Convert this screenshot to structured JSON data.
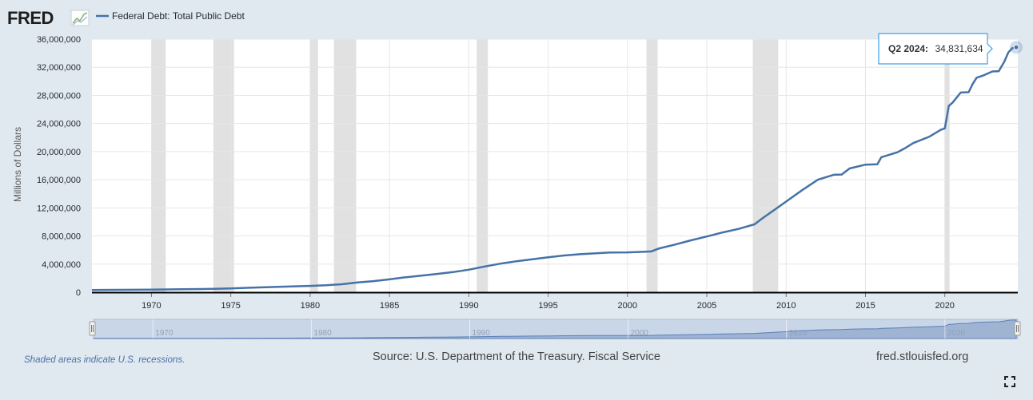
{
  "brand": {
    "logo_text": "FRED",
    "logo_icon": "fred-graph-icon"
  },
  "legend": {
    "series_label": "Federal Debt: Total Public Debt",
    "color": "#4572a7"
  },
  "tooltip": {
    "label": "Q2 2024:",
    "value": "34,831,634"
  },
  "navigator": {
    "ticks": [
      "1970",
      "1980",
      "1990",
      "2000",
      "2010",
      "2020"
    ]
  },
  "footer": {
    "recession_note": "Shaded areas indicate U.S. recessions.",
    "source": "Source: U.S. Department of the Treasury. Fiscal Service",
    "site": "fred.stlouisfed.org",
    "fullscreen_icon": "fullscreen-icon"
  },
  "colors": {
    "background": "#e1e9f0",
    "plot": "#ffffff",
    "line": "#4572a7",
    "recession": "#e1e1e1",
    "navigator_fill": "#b8c8e0"
  },
  "chart_data": {
    "type": "line",
    "title": "",
    "xlabel": "",
    "ylabel": "Millions of Dollars",
    "x_range": [
      1966.25,
      2024.6
    ],
    "ylim": [
      0,
      36000000
    ],
    "y_ticks": [
      0,
      4000000,
      8000000,
      12000000,
      16000000,
      20000000,
      24000000,
      28000000,
      32000000,
      36000000
    ],
    "y_tick_labels": [
      "0",
      "4,000,000",
      "8,000,000",
      "12,000,000",
      "16,000,000",
      "20,000,000",
      "24,000,000",
      "28,000,000",
      "32,000,000",
      "36,000,000"
    ],
    "x_ticks": [
      1970,
      1975,
      1980,
      1985,
      1990,
      1995,
      2000,
      2005,
      2010,
      2015,
      2020
    ],
    "x_tick_labels": [
      "1970",
      "1975",
      "1980",
      "1985",
      "1990",
      "1995",
      "2000",
      "2005",
      "2010",
      "2015",
      "2020"
    ],
    "grid": true,
    "legend_position": "top-left",
    "recessions": [
      [
        1970.0,
        1970.9
      ],
      [
        1973.9,
        1975.2
      ],
      [
        1980.0,
        1980.5
      ],
      [
        1981.5,
        1982.9
      ],
      [
        1990.5,
        1991.2
      ],
      [
        2001.2,
        2001.9
      ],
      [
        2007.9,
        2009.5
      ],
      [
        2020.0,
        2020.3
      ]
    ],
    "series": [
      {
        "name": "Federal Debt: Total Public Debt",
        "x": [
          1966.25,
          1968,
          1970,
          1972,
          1974,
          1975,
          1976,
          1978,
          1980,
          1981,
          1982,
          1983,
          1984,
          1985,
          1986,
          1987,
          1988,
          1989,
          1990,
          1991,
          1992,
          1993,
          1994,
          1995,
          1996,
          1997,
          1998,
          1999,
          2000,
          2000.5,
          2001,
          2001.5,
          2002,
          2003,
          2004,
          2005,
          2006,
          2007,
          2008,
          2008.5,
          2009,
          2010,
          2011,
          2012,
          2013,
          2013.5,
          2014,
          2015,
          2015.75,
          2016,
          2017,
          2017.5,
          2018,
          2019,
          2019.75,
          2020,
          2020.25,
          2020.5,
          2021,
          2021.5,
          2021.75,
          2022,
          2022.5,
          2023,
          2023.4,
          2023.75,
          2024,
          2024.25,
          2024.5
        ],
        "y": [
          320000,
          345000,
          380000,
          430000,
          480000,
          530000,
          620000,
          770000,
          900000,
          990000,
          1140000,
          1380000,
          1580000,
          1830000,
          2120000,
          2350000,
          2600000,
          2860000,
          3200000,
          3660000,
          4060000,
          4410000,
          4690000,
          4970000,
          5220000,
          5410000,
          5530000,
          5660000,
          5670000,
          5700000,
          5750000,
          5800000,
          6230000,
          6780000,
          7380000,
          7930000,
          8510000,
          9010000,
          9650000,
          10500000,
          11300000,
          12900000,
          14500000,
          16000000,
          16700000,
          16740000,
          17600000,
          18150000,
          18200000,
          19200000,
          19900000,
          20500000,
          21200000,
          22100000,
          23100000,
          23300000,
          26500000,
          27000000,
          28400000,
          28450000,
          29600000,
          30500000,
          30900000,
          31400000,
          31450000,
          32800000,
          34100000,
          34700000,
          34831634
        ]
      }
    ]
  }
}
